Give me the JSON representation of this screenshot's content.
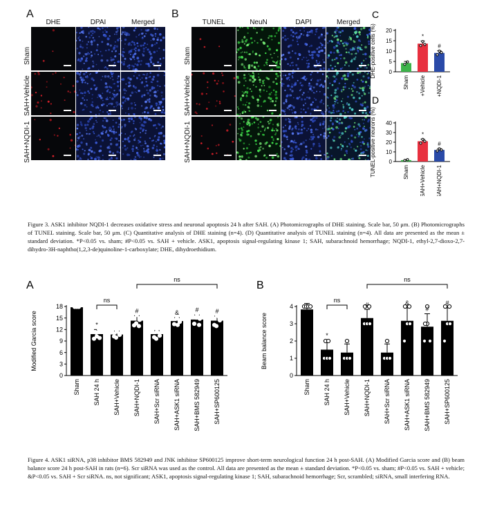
{
  "fig3": {
    "panel_a": {
      "letter": "A",
      "columns": [
        "DHE",
        "DPAI",
        "Merged"
      ],
      "rows": [
        "Sham",
        "SAH+Vehicle",
        "SAH+NQDI-1"
      ]
    },
    "panel_b": {
      "letter": "B",
      "columns": [
        "TUNEL",
        "NeuN",
        "DAPI",
        "Merged"
      ],
      "rows": [
        "Sham",
        "SAH+Vehicle",
        "SAH+NQDI-1"
      ]
    },
    "caption": "Figure 3. ASK1 inhibitor NQDI-1 decreases oxidative stress and neuronal apoptosis 24 h after SAH. (A) Photomicrographs of DHE staining. Scale bar, 50 μm. (B) Photomicrographs of TUNEL staining. Scale bar, 50 μm. (C) Quantitative analysis of DHE staining (n=4). (D) Quantitative analysis of TUNEL staining (n=4). All data are presented as the mean ± standard deviation. *P<0.05 vs. sham; #P<0.05 vs. SAH + vehicle. ASK1, apoptosis signal-regulating kinase 1; SAH, subarachnoid hemorrhage; NQDI-1, ethyl-2,7-dioxo-2,7-dihydro-3H-naphtho(1,2,3-de)quinoline-1-carboxylate; DHE, dihydroethidium."
  },
  "fig4": {
    "caption": "Figure 4. ASK1 siRNA, p38 inhibitor BMS 582949 and JNK inhibitor SP600125 improve short-term neurological function 24 h post-SAH. (A) Modified Garcia score and (B) beam balance score 24 h post-SAH in rats (n=6). Scr siRNA was used as the control. All data are presented as the mean ± standard deviation. *P<0.05 vs. sham; #P<0.05 vs. SAH + vehicle; &P<0.05 vs. SAH + Scr siRNA. ns, not significant; ASK1, apoptosis signal-regulating kinase 1; SAH, subarachnoid hemorrhage; Scr, scrambled; siRNA, small interfering RNA."
  },
  "colors": {
    "sham": "#3cb34a",
    "vehicle": "#e8303f",
    "nqdi": "#2a4aa8",
    "bar": "#000000"
  },
  "chart_data": [
    {
      "id": "fig3C",
      "letter": "C",
      "type": "bar",
      "categories": [
        "Sham",
        "SAH+Vehicle",
        "SAH+NQDI-1"
      ],
      "values": [
        4.2,
        13.6,
        9.1
      ],
      "errors": [
        0.8,
        1.3,
        1.1
      ],
      "sig": [
        "",
        "*",
        "#"
      ],
      "ylabel": "DHE-positive cells (%)",
      "ylim": [
        0,
        20
      ],
      "yticks": [
        0,
        5,
        10,
        15,
        20
      ]
    },
    {
      "id": "fig3D",
      "letter": "D",
      "type": "bar",
      "categories": [
        "Sham",
        "SAH+Vehicle",
        "SAH+NQDI-1"
      ],
      "values": [
        1.5,
        21,
        12
      ],
      "errors": [
        0.6,
        2.2,
        1.4
      ],
      "sig": [
        "",
        "*",
        "#"
      ],
      "ylabel": "TUNEL-positive neurons (%)",
      "ylim": [
        0,
        40
      ],
      "yticks": [
        0,
        10,
        20,
        30,
        40
      ]
    },
    {
      "id": "fig4A",
      "letter": "A",
      "type": "bar",
      "categories": [
        "Sham",
        "SAH 24 h",
        "SAH+Vehicle",
        "SAH+NQDI-1",
        "SAH+Scr siRNA",
        "SAH+ASK1 siRNA",
        "SAH+BMS 582949",
        "SAH+SP600125"
      ],
      "values": [
        17.8,
        10.8,
        10.7,
        14.3,
        10.8,
        14.2,
        14.6,
        14.3
      ],
      "errors": [
        0.3,
        1.2,
        0.9,
        1.3,
        0.9,
        0.9,
        1.2,
        1.2
      ],
      "sig": [
        "",
        "*",
        "",
        "#",
        "",
        "&",
        "#",
        "#"
      ],
      "ylabel": "Modified Garcia score",
      "ylim": [
        0,
        18
      ],
      "yticks": [
        0,
        3,
        6,
        9,
        12,
        15,
        18
      ],
      "brackets": [
        {
          "from": 1,
          "to": 2,
          "label": "ns"
        },
        {
          "from": 3,
          "to": 7,
          "label": "ns"
        }
      ]
    },
    {
      "id": "fig4B",
      "letter": "B",
      "type": "bar",
      "categories": [
        "Sham",
        "SAH 24 h",
        "SAH+Vehicle",
        "SAH+NQDI-1",
        "SAH+Scr siRNA",
        "SAH+ASK1 siRNA",
        "SAH+BMS 582949",
        "SAH+SP600125"
      ],
      "values": [
        3.83,
        1.5,
        1.33,
        3.33,
        1.33,
        3.17,
        2.83,
        3.17
      ],
      "errors": [
        0.35,
        0.55,
        0.5,
        0.5,
        0.5,
        0.75,
        0.75,
        0.75
      ],
      "sig": [
        "",
        "*",
        "",
        "#",
        "",
        "&",
        "#",
        "#"
      ],
      "ylabel": "Beam balance score",
      "ylim": [
        0,
        4
      ],
      "yticks": [
        0,
        1,
        2,
        3,
        4
      ],
      "brackets": [
        {
          "from": 1,
          "to": 2,
          "label": "ns"
        },
        {
          "from": 3,
          "to": 7,
          "label": "ns"
        }
      ]
    }
  ]
}
